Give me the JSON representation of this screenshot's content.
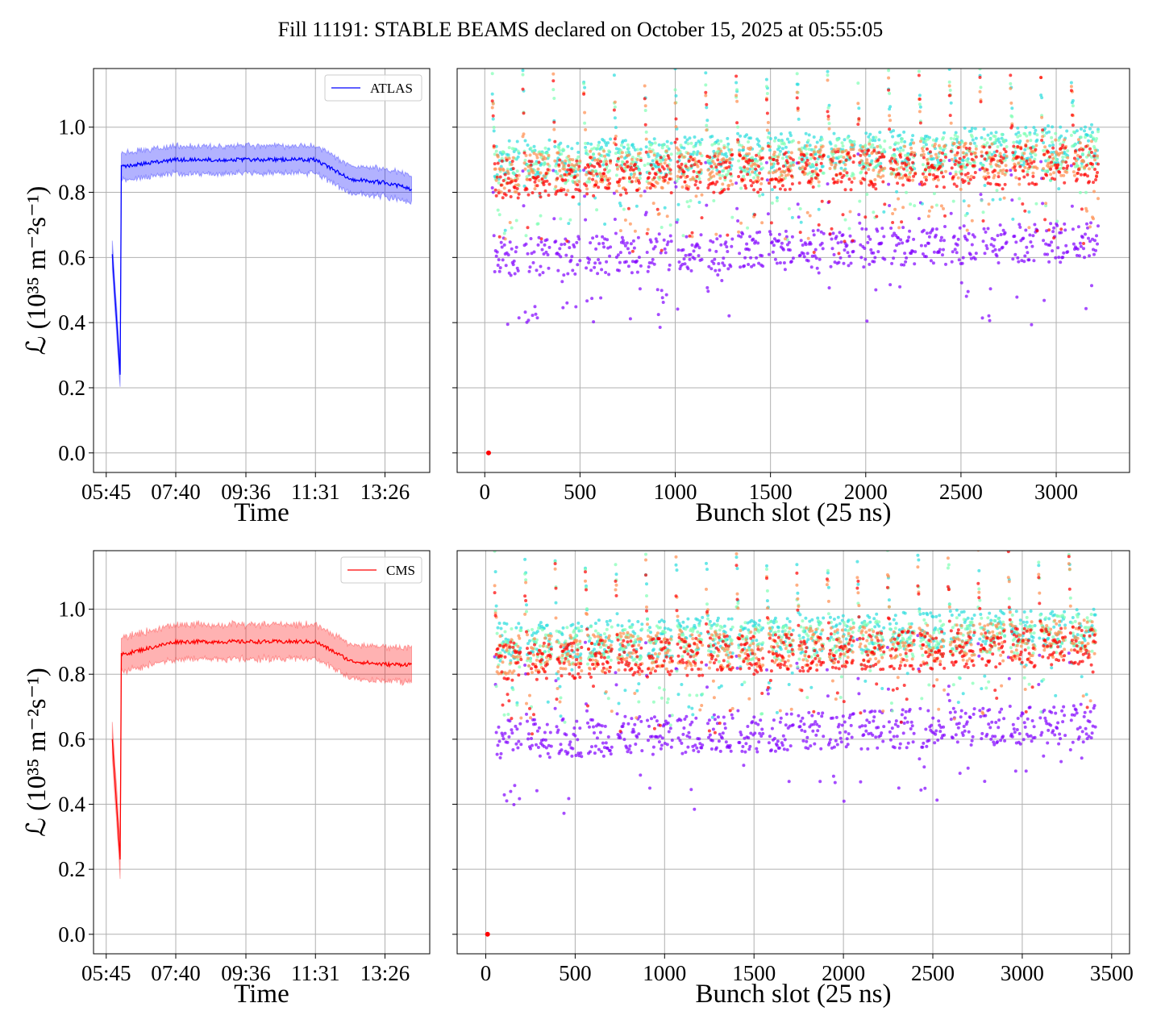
{
  "title": "Fill 11191: STABLE BEAMS declared on October 15, 2025 at 05:55:05",
  "ylabel": "ℒ (10³⁵ m⁻²s⁻¹)",
  "colors": {
    "ATLAS": "#0000ff",
    "CMS": "#ff0000",
    "bunch_palette": [
      "#8000ff",
      "#2adddd",
      "#80ffb4",
      "#ff8d4d",
      "#ff0000"
    ]
  },
  "chart_data": [
    {
      "type": "line",
      "series": [
        {
          "name": "ATLAS",
          "x": [
            "05:55",
            "06:08",
            "06:10",
            "07:40",
            "09:36",
            "11:31",
            "12:30",
            "13:26",
            "14:10"
          ],
          "values": [
            0.61,
            0.24,
            0.88,
            0.9,
            0.9,
            0.9,
            0.84,
            0.83,
            0.81
          ],
          "band": 0.04
        }
      ],
      "xlabel": "Time",
      "ylabel": "ℒ (10³⁵ m⁻²s⁻¹)",
      "xticks": [
        "05:45",
        "07:40",
        "09:36",
        "11:31",
        "13:26"
      ],
      "yticks": [
        "0.0",
        "0.2",
        "0.4",
        "0.6",
        "0.8",
        "1.0"
      ],
      "ylim": [
        -0.06,
        1.18
      ],
      "grid": true,
      "legend": "top-right"
    },
    {
      "type": "scatter",
      "xlabel": "Bunch slot (25 ns)",
      "xticks": [
        "0",
        "500",
        "1000",
        "1500",
        "2000",
        "2500",
        "3000"
      ],
      "xlim": [
        -145,
        3385
      ],
      "ylim": [
        -0.06,
        1.18
      ],
      "grid": true,
      "series_levels": [
        0.6,
        0.9,
        0.88,
        0.86,
        0.84
      ],
      "x_extent": [
        40,
        3240
      ],
      "note_point": {
        "x": 20,
        "y": 0.0
      }
    },
    {
      "type": "line",
      "series": [
        {
          "name": "CMS",
          "x": [
            "05:55",
            "06:08",
            "06:10",
            "07:40",
            "09:36",
            "11:31",
            "12:30",
            "13:26",
            "14:10"
          ],
          "values": [
            0.6,
            0.23,
            0.86,
            0.9,
            0.9,
            0.9,
            0.84,
            0.83,
            0.83
          ],
          "band": 0.05
        }
      ],
      "xlabel": "Time",
      "ylabel": "ℒ (10³⁵ m⁻²s⁻¹)",
      "xticks": [
        "05:45",
        "07:40",
        "09:36",
        "11:31",
        "13:26"
      ],
      "yticks": [
        "0.0",
        "0.2",
        "0.4",
        "0.6",
        "0.8",
        "1.0"
      ],
      "ylim": [
        -0.06,
        1.18
      ],
      "grid": true,
      "legend": "top-right"
    },
    {
      "type": "scatter",
      "xlabel": "Bunch slot (25 ns)",
      "xticks": [
        "0",
        "500",
        "1000",
        "1500",
        "2000",
        "2500",
        "3000",
        "3500"
      ],
      "xlim": [
        -160,
        3600
      ],
      "ylim": [
        -0.06,
        1.18
      ],
      "grid": true,
      "series_levels": [
        0.6,
        0.9,
        0.88,
        0.86,
        0.84
      ],
      "x_extent": [
        50,
        3430
      ],
      "note_point": {
        "x": 10,
        "y": 0.0
      }
    }
  ]
}
